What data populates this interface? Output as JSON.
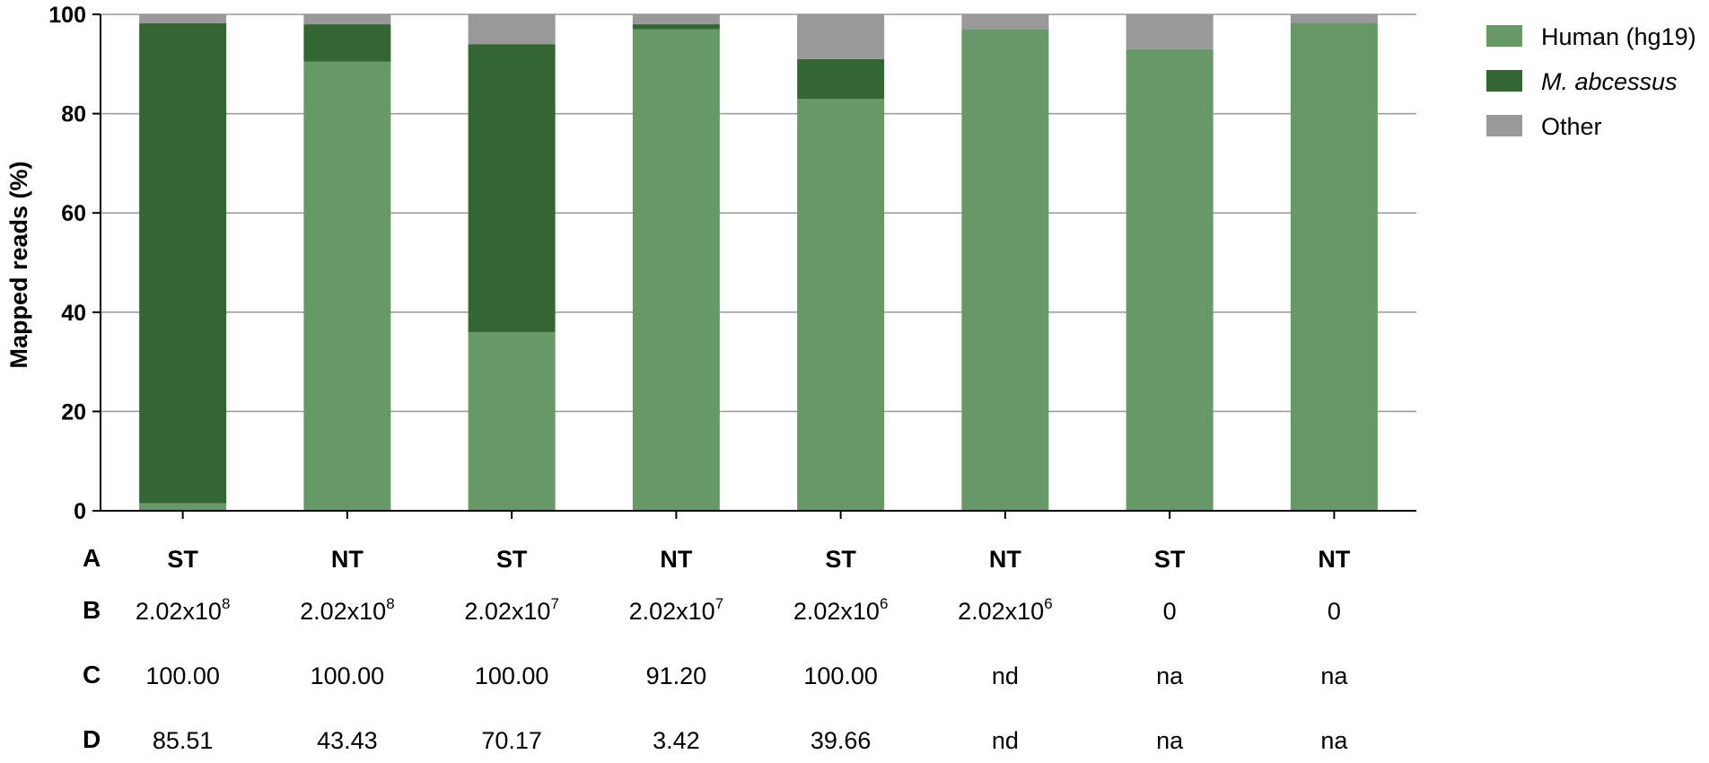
{
  "chart_data": {
    "type": "bar",
    "stacked": true,
    "categories": [
      "ST",
      "NT",
      "ST",
      "NT",
      "ST",
      "NT",
      "ST",
      "NT"
    ],
    "series": [
      {
        "name": "Human (hg19)",
        "color": "#669966",
        "values": [
          1.5,
          90.5,
          36,
          97,
          83,
          97,
          93,
          98.3
        ]
      },
      {
        "name": "M. abcessus",
        "color": "#336633",
        "values": [
          96.7,
          7.5,
          58,
          1,
          8,
          0,
          0,
          0
        ]
      },
      {
        "name": "Other",
        "color": "#999999",
        "values": [
          1.8,
          2,
          6,
          2,
          9,
          3,
          7,
          1.7
        ]
      }
    ],
    "ylabel": "Mapped reads (%)",
    "ylim": [
      0,
      100
    ],
    "yticks": [
      0,
      20,
      40,
      60,
      80,
      100
    ],
    "grid": true,
    "legend_position": "top-right"
  },
  "table": {
    "labels": [
      "A",
      "B",
      "C",
      "D"
    ],
    "row_a": [
      "ST",
      "NT",
      "ST",
      "NT",
      "ST",
      "NT",
      "ST",
      "NT"
    ],
    "row_b": [
      {
        "base": "2.02x10",
        "exp": "8"
      },
      {
        "base": "2.02x10",
        "exp": "8"
      },
      {
        "base": "2.02x10",
        "exp": "7"
      },
      {
        "base": "2.02x10",
        "exp": "7"
      },
      {
        "base": "2.02x10",
        "exp": "6"
      },
      {
        "base": "2.02x10",
        "exp": "6"
      },
      {
        "base": "0",
        "exp": ""
      },
      {
        "base": "0",
        "exp": ""
      }
    ],
    "row_c": [
      "100.00",
      "100.00",
      "100.00",
      "91.20",
      "100.00",
      "nd",
      "na",
      "na"
    ],
    "row_d": [
      "85.51",
      "43.43",
      "70.17",
      "3.42",
      "39.66",
      "nd",
      "na",
      "na"
    ]
  }
}
